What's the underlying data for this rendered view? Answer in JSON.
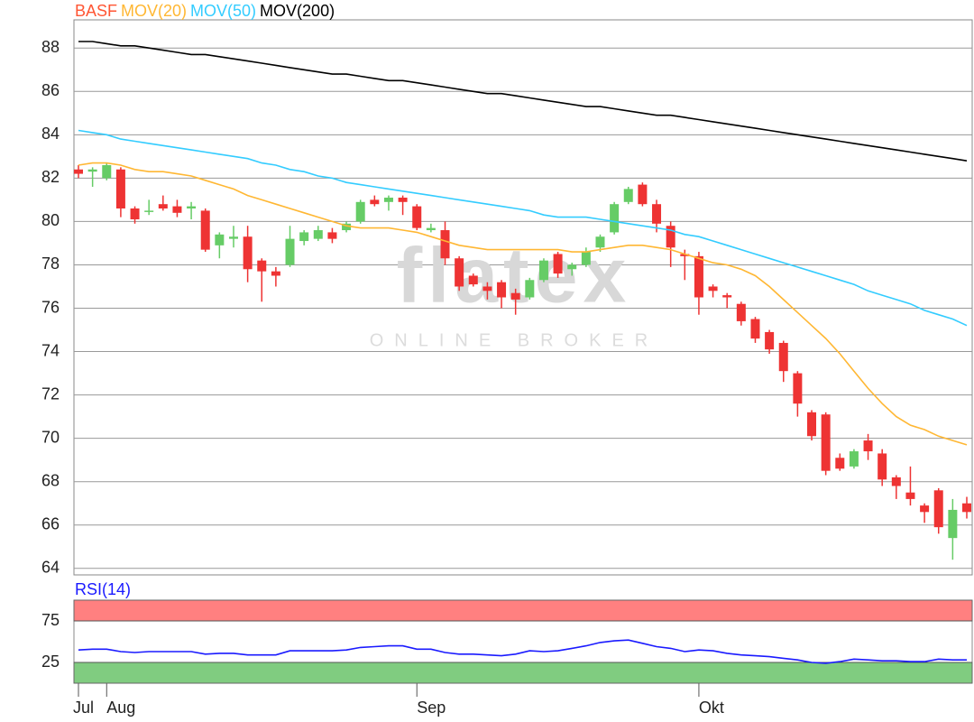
{
  "chart_data": [
    {
      "type": "candlestick",
      "watermark": "flatex",
      "watermark_subtitle": "ONLINE BROKER",
      "categories": [
        "Jul",
        null,
        "Aug",
        null,
        null,
        null,
        null,
        null,
        null,
        null,
        null,
        null,
        null,
        null,
        null,
        null,
        null,
        null,
        null,
        null,
        null,
        null,
        null,
        null,
        "Sep",
        null,
        null,
        null,
        null,
        null,
        null,
        null,
        null,
        null,
        null,
        null,
        null,
        null,
        null,
        null,
        null,
        null,
        null,
        null,
        "Okt",
        null,
        null,
        null,
        null,
        null,
        null,
        null,
        null,
        null,
        null,
        null,
        null,
        null,
        null,
        null,
        null,
        null,
        null,
        null
      ],
      "ylim": [
        63.7,
        89.3
      ],
      "yticks": [
        64,
        66,
        68,
        70,
        72,
        74,
        76,
        78,
        80,
        82,
        84,
        86,
        88
      ],
      "grid": true,
      "series": [
        {
          "name": "BASF",
          "type": "candlestick",
          "color": "#ff5533",
          "up_color": "#66cc66",
          "down_color": "#ee3333",
          "open": [
            82.4,
            82.3,
            82.0,
            82.4,
            80.6,
            80.5,
            80.8,
            80.7,
            80.6,
            80.5,
            78.9,
            79.2,
            79.3,
            78.2,
            77.7,
            78.0,
            79.1,
            79.2,
            79.5,
            79.6,
            80.0,
            81.0,
            80.9,
            81.1,
            80.7,
            79.6,
            79.6,
            78.3,
            77.5,
            77.0,
            77.2,
            76.7,
            76.5,
            77.3,
            78.5,
            77.8,
            78.0,
            78.8,
            79.5,
            80.9,
            81.7,
            80.8,
            79.8,
            78.5,
            78.4,
            77.0,
            76.6,
            76.2,
            75.5,
            74.9,
            74.4,
            73.0,
            71.2,
            71.1,
            69.1,
            68.7,
            69.9,
            69.3,
            68.2,
            67.5,
            66.9,
            67.6,
            65.4,
            67.0
          ],
          "high": [
            82.6,
            82.5,
            82.7,
            82.5,
            80.7,
            81.0,
            81.2,
            81.0,
            80.9,
            80.6,
            79.5,
            79.8,
            79.8,
            78.3,
            77.9,
            79.8,
            79.6,
            79.8,
            79.7,
            80.0,
            81.0,
            81.2,
            81.2,
            81.2,
            80.8,
            79.9,
            80.0,
            78.4,
            77.6,
            77.2,
            77.3,
            76.9,
            77.4,
            78.3,
            78.6,
            78.1,
            78.8,
            79.4,
            80.9,
            81.6,
            81.8,
            81.0,
            80.0,
            78.7,
            78.6,
            77.1,
            76.7,
            76.3,
            75.6,
            75.0,
            74.5,
            73.1,
            71.3,
            71.2,
            69.3,
            69.5,
            70.2,
            69.5,
            68.3,
            68.7,
            67.0,
            67.7,
            67.2,
            67.3
          ],
          "low": [
            82.0,
            81.6,
            81.9,
            80.2,
            79.9,
            80.3,
            80.5,
            80.2,
            80.1,
            78.6,
            78.3,
            78.8,
            77.2,
            76.3,
            77.0,
            77.9,
            78.9,
            79.1,
            79.0,
            79.5,
            79.9,
            80.7,
            80.5,
            80.3,
            79.6,
            79.5,
            78.0,
            76.8,
            77.0,
            76.4,
            76.0,
            75.7,
            76.4,
            77.2,
            77.4,
            77.5,
            77.9,
            78.6,
            79.4,
            80.8,
            80.7,
            79.5,
            77.9,
            77.3,
            75.7,
            76.5,
            76.0,
            75.2,
            74.4,
            73.9,
            72.6,
            71.0,
            69.9,
            68.3,
            68.5,
            68.6,
            69.0,
            67.8,
            67.2,
            66.9,
            66.1,
            65.6,
            64.4,
            66.3
          ],
          "close": [
            82.2,
            82.4,
            82.6,
            80.6,
            80.1,
            80.5,
            80.6,
            80.4,
            80.7,
            78.7,
            79.4,
            79.3,
            77.8,
            77.7,
            77.5,
            79.2,
            79.5,
            79.6,
            79.2,
            79.9,
            80.9,
            80.8,
            81.1,
            80.9,
            79.7,
            79.7,
            78.3,
            77.0,
            77.1,
            76.8,
            76.5,
            76.4,
            77.3,
            78.2,
            77.6,
            78.0,
            78.6,
            79.3,
            80.8,
            81.5,
            80.8,
            79.9,
            78.8,
            78.4,
            76.5,
            76.8,
            76.5,
            75.4,
            74.6,
            74.1,
            73.1,
            71.6,
            70.1,
            68.5,
            68.6,
            69.4,
            69.4,
            68.1,
            67.8,
            67.2,
            66.6,
            65.9,
            66.7,
            66.6
          ]
        },
        {
          "name": "MOV(20)",
          "type": "line",
          "color": "#ffb733",
          "values": [
            82.6,
            82.7,
            82.7,
            82.6,
            82.4,
            82.3,
            82.3,
            82.2,
            82.1,
            81.9,
            81.7,
            81.5,
            81.2,
            81.0,
            80.8,
            80.6,
            80.4,
            80.2,
            80.0,
            79.8,
            79.7,
            79.7,
            79.7,
            79.6,
            79.5,
            79.3,
            79.1,
            78.9,
            78.8,
            78.7,
            78.7,
            78.7,
            78.7,
            78.7,
            78.7,
            78.6,
            78.6,
            78.7,
            78.8,
            78.9,
            78.9,
            78.8,
            78.7,
            78.5,
            78.3,
            78.1,
            78.0,
            77.8,
            77.5,
            77.0,
            76.4,
            75.8,
            75.2,
            74.6,
            73.9,
            73.1,
            72.3,
            71.6,
            71.0,
            70.6,
            70.4,
            70.1,
            69.9,
            69.7
          ]
        },
        {
          "name": "MOV(50)",
          "type": "line",
          "color": "#33ccff",
          "values": [
            84.2,
            84.1,
            84.0,
            83.8,
            83.7,
            83.6,
            83.5,
            83.4,
            83.3,
            83.2,
            83.1,
            83.0,
            82.9,
            82.7,
            82.6,
            82.4,
            82.3,
            82.1,
            82.0,
            81.8,
            81.7,
            81.6,
            81.5,
            81.4,
            81.3,
            81.2,
            81.1,
            81.0,
            80.9,
            80.8,
            80.7,
            80.6,
            80.5,
            80.3,
            80.2,
            80.2,
            80.2,
            80.1,
            80.0,
            79.9,
            79.8,
            79.7,
            79.6,
            79.4,
            79.3,
            79.1,
            78.9,
            78.7,
            78.5,
            78.3,
            78.1,
            77.9,
            77.7,
            77.5,
            77.3,
            77.1,
            76.8,
            76.6,
            76.4,
            76.2,
            75.9,
            75.7,
            75.5,
            75.2
          ]
        },
        {
          "name": "MOV(200)",
          "type": "line",
          "color": "#000000",
          "values": [
            88.3,
            88.3,
            88.2,
            88.1,
            88.1,
            88.0,
            87.9,
            87.8,
            87.7,
            87.7,
            87.6,
            87.5,
            87.4,
            87.3,
            87.2,
            87.1,
            87.0,
            86.9,
            86.8,
            86.8,
            86.7,
            86.6,
            86.5,
            86.5,
            86.4,
            86.3,
            86.2,
            86.1,
            86.0,
            85.9,
            85.9,
            85.8,
            85.7,
            85.6,
            85.5,
            85.4,
            85.3,
            85.3,
            85.2,
            85.1,
            85.0,
            84.9,
            84.9,
            84.8,
            84.7,
            84.6,
            84.5,
            84.4,
            84.3,
            84.2,
            84.1,
            84.0,
            83.9,
            83.8,
            83.7,
            83.6,
            83.5,
            83.4,
            83.3,
            83.2,
            83.1,
            83.0,
            82.9,
            82.8
          ]
        }
      ]
    },
    {
      "type": "line",
      "ylim": [
        0,
        100
      ],
      "yticks": [
        25,
        75
      ],
      "zones": [
        {
          "from": 75,
          "to": 100,
          "color": "#ff8080"
        },
        {
          "from": 0,
          "to": 25,
          "color": "#80cc80"
        }
      ],
      "series": [
        {
          "name": "RSI(14)",
          "type": "line",
          "color": "#1a1aff",
          "values": [
            40,
            41,
            41,
            38,
            37,
            38,
            38,
            38,
            38,
            35,
            36,
            36,
            34,
            34,
            34,
            39,
            39,
            39,
            39,
            40,
            43,
            44,
            45,
            45,
            41,
            41,
            37,
            35,
            35,
            34,
            33,
            35,
            39,
            38,
            39,
            42,
            45,
            49,
            51,
            52,
            48,
            44,
            42,
            38,
            40,
            39,
            36,
            34,
            33,
            32,
            30,
            28,
            25,
            24,
            26,
            29,
            28,
            27,
            27,
            26,
            26,
            29,
            28,
            28
          ]
        }
      ]
    }
  ]
}
